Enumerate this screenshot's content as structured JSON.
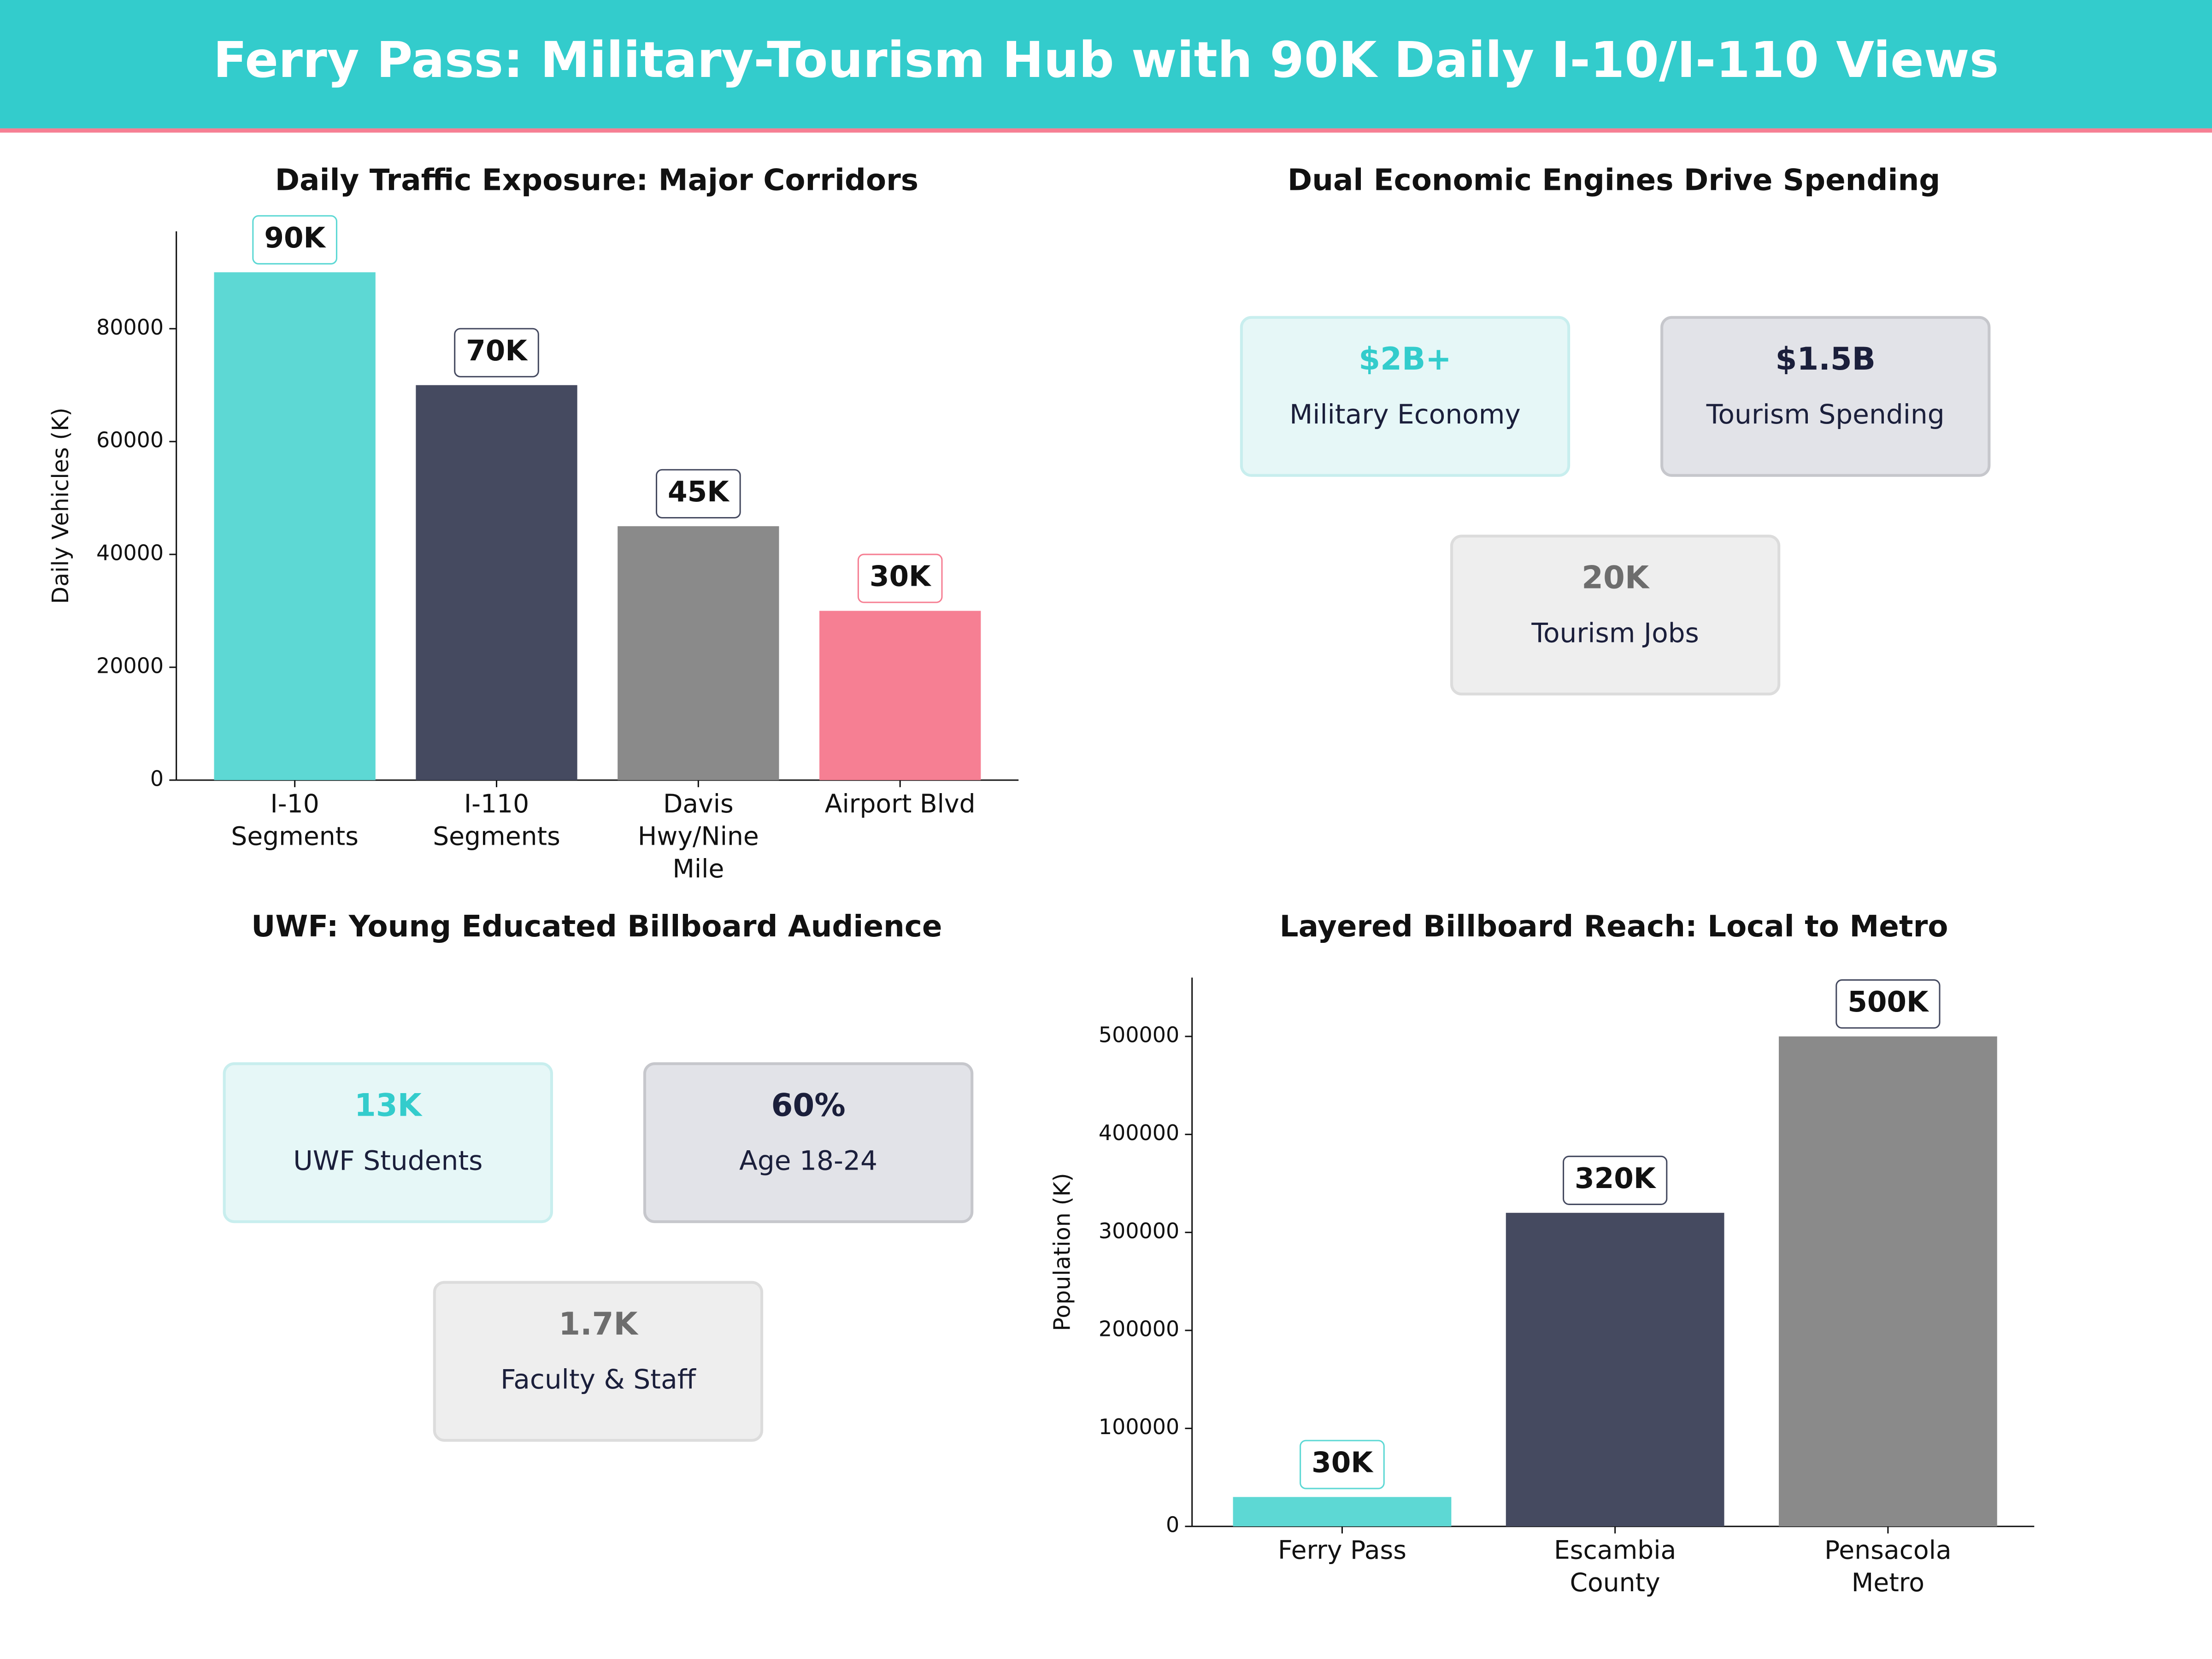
{
  "title": "Ferry Pass: Military-Tourism Hub with 90K Daily I-10/I-110 Views",
  "chart_data": [
    {
      "type": "bar",
      "title": "Daily Traffic Exposure: Major Corridors",
      "y_label": "Daily Vehicles (K)",
      "categories": [
        "I-10 Segments",
        "I-110 Segments",
        "Davis Hwy/Nine Mile",
        "Airport Blvd"
      ],
      "values": [
        90000,
        70000,
        45000,
        30000
      ],
      "value_labels": [
        "90K",
        "70K",
        "45K",
        "30K"
      ],
      "colors": [
        "#5dd8d4",
        "#454a60",
        "#8a8a8a",
        "#f67f93"
      ],
      "ylim": [
        0,
        97250
      ],
      "yticks": [
        0,
        20000,
        40000,
        60000,
        80000
      ],
      "grid": false
    },
    {
      "type": "bar",
      "title": "Layered Billboard Reach: Local to Metro",
      "y_label": "Population (K)",
      "categories": [
        "Ferry Pass",
        "Escambia County",
        "Pensacola Metro"
      ],
      "values": [
        30000,
        320000,
        500000
      ],
      "value_labels": [
        "30K",
        "320K",
        "500K"
      ],
      "colors": [
        "#5dd8d4",
        "#454a60",
        "#8a8a8a"
      ],
      "ylim": [
        0,
        560000
      ],
      "yticks": [
        0,
        100000,
        200000,
        300000,
        400000,
        500000
      ],
      "grid": false
    }
  ],
  "kpi_panels": [
    {
      "title": "Dual Economic Engines Drive Spending",
      "cards": [
        {
          "value": "$2B+",
          "label": "Military Economy",
          "color": "#33cccc"
        },
        {
          "value": "$1.5B",
          "label": "Tourism Spending",
          "color": "#1b1f3b"
        },
        {
          "value": "20K",
          "label": "Tourism Jobs",
          "color": "#6d6d6d"
        }
      ]
    },
    {
      "title": "UWF: Young Educated Billboard Audience",
      "cards": [
        {
          "value": "13K",
          "label": "UWF Students",
          "color": "#33cccc"
        },
        {
          "value": "60%",
          "label": "Age 18-24",
          "color": "#1b1f3b"
        },
        {
          "value": "1.7K",
          "label": "Faculty & Staff",
          "color": "#6d6d6d"
        }
      ]
    }
  ]
}
